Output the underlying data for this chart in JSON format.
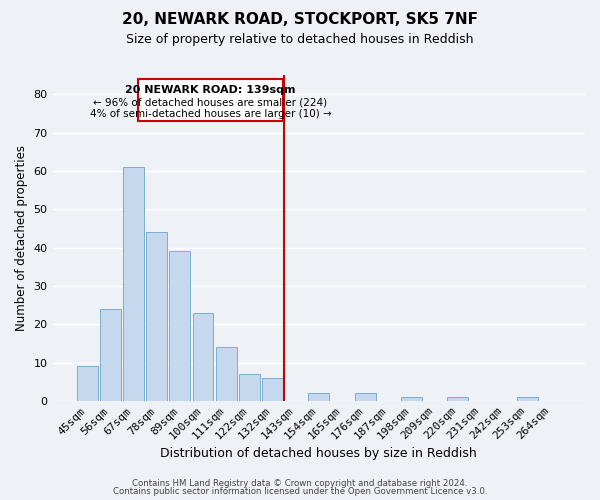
{
  "title": "20, NEWARK ROAD, STOCKPORT, SK5 7NF",
  "subtitle": "Size of property relative to detached houses in Reddish",
  "xlabel": "Distribution of detached houses by size in Reddish",
  "ylabel": "Number of detached properties",
  "bin_labels": [
    "45sqm",
    "56sqm",
    "67sqm",
    "78sqm",
    "89sqm",
    "100sqm",
    "111sqm",
    "122sqm",
    "132sqm",
    "143sqm",
    "154sqm",
    "165sqm",
    "176sqm",
    "187sqm",
    "198sqm",
    "209sqm",
    "220sqm",
    "231sqm",
    "242sqm",
    "253sqm",
    "264sqm"
  ],
  "bar_heights": [
    9,
    24,
    61,
    44,
    39,
    23,
    14,
    7,
    6,
    0,
    2,
    0,
    2,
    0,
    1,
    0,
    1,
    0,
    0,
    1,
    0
  ],
  "bar_color": "#c5d8ed",
  "bar_edge_color": "#7aaecf",
  "reference_line_x_label": "143sqm",
  "reference_line_color": "#cc0000",
  "annotation_title": "20 NEWARK ROAD: 139sqm",
  "annotation_line1": "← 96% of detached houses are smaller (224)",
  "annotation_line2": "4% of semi-detached houses are larger (10) →",
  "annotation_box_color": "#ffffff",
  "annotation_box_edge_color": "#cc0000",
  "ylim": [
    0,
    85
  ],
  "yticks": [
    0,
    10,
    20,
    30,
    40,
    50,
    60,
    70,
    80
  ],
  "footer_line1": "Contains HM Land Registry data © Crown copyright and database right 2024.",
  "footer_line2": "Contains public sector information licensed under the Open Government Licence v3.0.",
  "background_color": "#eef2f7",
  "grid_color": "#ffffff"
}
